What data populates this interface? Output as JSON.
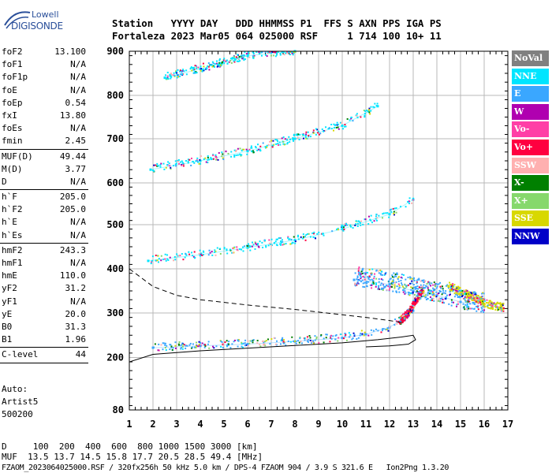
{
  "logo": {
    "brand": "Lowell",
    "product": "DIGISONDE"
  },
  "header": {
    "line1": "Station   YYYY DAY   DDD HHMMSS P1  FFS S AXN PPS IGA PS",
    "line2": "Fortaleza 2023 Mar05 064 025000 RSF     1 714 100 10+ 11"
  },
  "params": [
    [
      {
        "n": "foF2",
        "v": "13.100"
      },
      {
        "n": "foF1",
        "v": "N/A"
      },
      {
        "n": "foF1p",
        "v": "N/A"
      },
      {
        "n": "foE",
        "v": "N/A"
      },
      {
        "n": "foEp",
        "v": "0.54"
      },
      {
        "n": "fxI",
        "v": "13.80"
      },
      {
        "n": "foEs",
        "v": "N/A"
      },
      {
        "n": "fmin",
        "v": "2.45"
      }
    ],
    [
      {
        "n": "MUF(D)",
        "v": "49.44"
      },
      {
        "n": "M(D)",
        "v": "3.77"
      },
      {
        "n": "D",
        "v": "N/A"
      }
    ],
    [
      {
        "n": "h`F",
        "v": "205.0"
      },
      {
        "n": "h`F2",
        "v": "205.0"
      },
      {
        "n": "h`E",
        "v": "N/A"
      },
      {
        "n": "h`Es",
        "v": "N/A"
      }
    ],
    [
      {
        "n": "hmF2",
        "v": "243.3"
      },
      {
        "n": "hmF1",
        "v": "N/A"
      },
      {
        "n": "hmE",
        "v": "110.0"
      },
      {
        "n": "yF2",
        "v": "31.2"
      },
      {
        "n": "yF1",
        "v": "N/A"
      },
      {
        "n": "yE",
        "v": "20.0"
      },
      {
        "n": "B0",
        "v": "31.3"
      },
      {
        "n": "B1",
        "v": "1.96"
      }
    ],
    [
      {
        "n": "C-level",
        "v": "44"
      }
    ]
  ],
  "auto": {
    "line1": "Auto:",
    "line2": "Artist5",
    "line3": "500200"
  },
  "legend": [
    {
      "label": "NoVal",
      "color": "#808080"
    },
    {
      "label": "NNE",
      "color": "#00e5ff"
    },
    {
      "label": "E",
      "color": "#3aa7ff"
    },
    {
      "label": "W",
      "color": "#b000b0"
    },
    {
      "label": "Vo-",
      "color": "#ff3fa6"
    },
    {
      "label": "Vo+",
      "color": "#ff0040"
    },
    {
      "label": "SSW",
      "color": "#ffb0b0"
    },
    {
      "label": "X-",
      "color": "#008000"
    },
    {
      "label": "X+",
      "color": "#86d86c"
    },
    {
      "label": "SSE",
      "color": "#d8d800"
    },
    {
      "label": "NNW",
      "color": "#0000c8"
    }
  ],
  "footer": {
    "line1": "D     100  200  400  600  800 1000 1500 3000 [km]",
    "line2": "MUF  13.5 13.7 14.5 15.8 17.7 20.5 28.5 49.4 [MHz]",
    "line3": "FZAOM_2023064025000.RSF / 320fx256h 50 kHz 5.0 km / DPS-4 FZAOM 904 / 3.9 S 321.6 E   Ion2Png 1.3.20"
  },
  "chart_data": {
    "type": "scatter",
    "xlabel": "",
    "ylabel": "",
    "xlim": [
      1,
      17
    ],
    "ylim": [
      80,
      900
    ],
    "x_ticks": [
      1,
      2,
      3,
      4,
      5,
      6,
      7,
      8,
      9,
      10,
      11,
      12,
      13,
      14,
      15,
      16,
      17
    ],
    "y_ticks": [
      80,
      200,
      300,
      400,
      500,
      600,
      700,
      800,
      900
    ],
    "grid": true,
    "series": [
      {
        "name": "E",
        "trace": "F2 O-trace",
        "x": [
          2.0,
          4.0,
          6.0,
          8.0,
          10.0,
          11.0,
          12.0,
          12.5,
          13.0
        ],
        "y": [
          222,
          226,
          230,
          236,
          244,
          252,
          268,
          285,
          305
        ]
      },
      {
        "name": "Vo+",
        "trace": "F2 O-trace near MUF",
        "x": [
          12.4,
          12.8,
          13.0,
          13.2,
          13.4
        ],
        "y": [
          280,
          300,
          320,
          335,
          350
        ]
      },
      {
        "name": "E",
        "trace": "spread F",
        "x": [
          10.5,
          12.0,
          13.0,
          14.0,
          15.0,
          16.0
        ],
        "y": [
          375,
          365,
          350,
          340,
          325,
          315
        ]
      },
      {
        "name": "SSE",
        "trace": "spread F high-frequency end",
        "x": [
          14.5,
          15.0,
          15.5,
          16.0,
          16.8
        ],
        "y": [
          360,
          345,
          335,
          320,
          310
        ]
      },
      {
        "name": "NNE",
        "trace": "2nd hop",
        "x": [
          1.8,
          4.0,
          6.0,
          8.0,
          10.0,
          12.0,
          13.0
        ],
        "y": [
          418,
          432,
          448,
          465,
          490,
          525,
          560
        ]
      },
      {
        "name": "NNE",
        "trace": "3rd hop",
        "x": [
          1.9,
          4.0,
          6.0,
          8.0,
          10.0,
          11.5
        ],
        "y": [
          630,
          650,
          672,
          700,
          730,
          775
        ]
      },
      {
        "name": "NNE",
        "trace": "4th hop",
        "x": [
          2.5,
          4.0,
          6.0,
          8.0
        ],
        "y": [
          840,
          860,
          890,
          900
        ]
      }
    ],
    "profile_solid": {
      "x": [
        1.0,
        2.0,
        4.0,
        6.0,
        8.0,
        10.0,
        11.5,
        12.5,
        13.0,
        13.1,
        12.8,
        12.0,
        11.0
      ],
      "y": [
        190,
        207,
        215,
        221,
        227,
        233,
        240,
        246,
        250,
        240,
        230,
        226,
        224
      ]
    },
    "profile_dashed": {
      "x": [
        1.0,
        2.0,
        3.0,
        4.0,
        6.0,
        8.0,
        10.0,
        11.0,
        12.0,
        12.6
      ],
      "y": [
        400,
        360,
        340,
        330,
        318,
        308,
        296,
        290,
        283,
        278
      ]
    }
  }
}
